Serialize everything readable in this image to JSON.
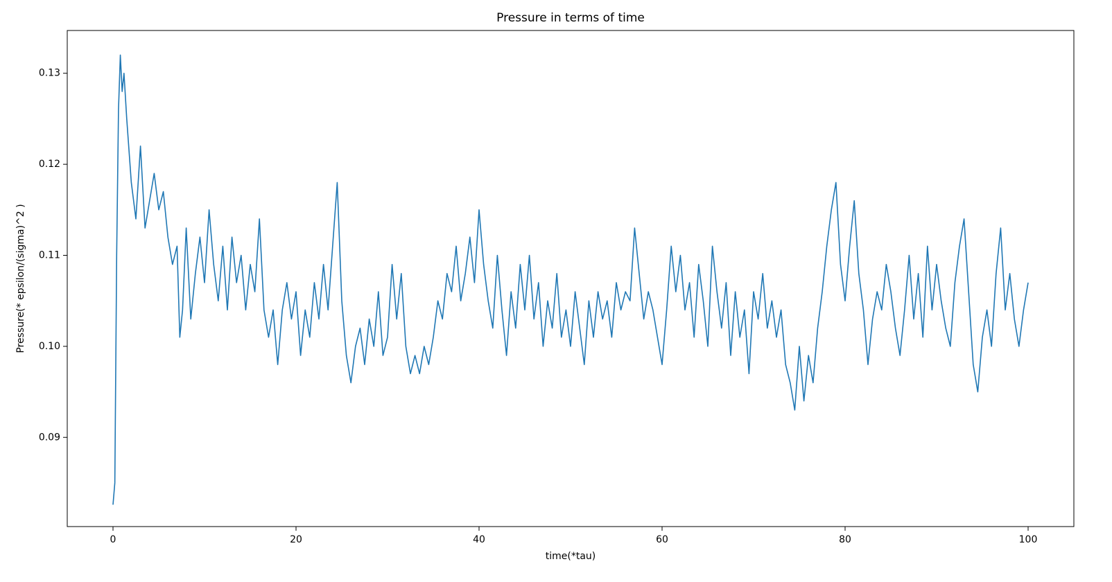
{
  "chart_data": {
    "type": "line",
    "title": "Pressure in terms of time",
    "xlabel": "time(*tau)",
    "ylabel": "Pressure(* epsilon/(sigma)^2 )",
    "xlim": [
      -5,
      105
    ],
    "ylim": [
      0.0802,
      0.1347
    ],
    "xticks": [
      0,
      20,
      40,
      60,
      80,
      100
    ],
    "yticks": [
      0.09,
      {
        "value": 0.1,
        "label": "0.10"
      },
      0.11,
      0.12,
      0.13
    ],
    "grid": false,
    "series": [
      {
        "color": "#1f77b4",
        "x": [
          0,
          0.2,
          0.4,
          0.6,
          0.8,
          1.0,
          1.2,
          1.5,
          2,
          2.5,
          3,
          3.5,
          4,
          4.5,
          5,
          5.5,
          6,
          6.5,
          7,
          7.3,
          7.6,
          8,
          8.5,
          9,
          9.5,
          10,
          10.5,
          11,
          11.5,
          12,
          12.5,
          13,
          13.5,
          14,
          14.5,
          15,
          15.5,
          16,
          16.5,
          17,
          17.5,
          18,
          18.5,
          19,
          19.5,
          20,
          20.5,
          21,
          21.5,
          22,
          22.5,
          23,
          23.5,
          24,
          24.5,
          25,
          25.5,
          26,
          26.5,
          27,
          27.5,
          28,
          28.5,
          29,
          29.5,
          30,
          30.5,
          31,
          31.5,
          32,
          32.5,
          33,
          33.5,
          34,
          34.5,
          35,
          35.5,
          36,
          36.5,
          37,
          37.5,
          38,
          38.5,
          39,
          39.5,
          40,
          40.5,
          41,
          41.5,
          42,
          42.5,
          43,
          43.5,
          44,
          44.5,
          45,
          45.5,
          46,
          46.5,
          47,
          47.5,
          48,
          48.5,
          49,
          49.5,
          50,
          50.5,
          51,
          51.5,
          52,
          52.5,
          53,
          53.5,
          54,
          54.5,
          55,
          55.5,
          56,
          56.5,
          57,
          57.5,
          58,
          58.5,
          59,
          59.5,
          60,
          60.5,
          61,
          61.5,
          62,
          62.5,
          63,
          63.5,
          64,
          64.5,
          65,
          65.5,
          66,
          66.5,
          67,
          67.5,
          68,
          68.5,
          69,
          69.5,
          70,
          70.5,
          71,
          71.5,
          72,
          72.5,
          73,
          73.5,
          74,
          74.5,
          75,
          75.5,
          76,
          76.5,
          77,
          77.5,
          78,
          78.5,
          79,
          79.5,
          80,
          80.5,
          81,
          81.5,
          82,
          82.5,
          83,
          83.5,
          84,
          84.5,
          85,
          85.5,
          86,
          86.5,
          87,
          87.5,
          88,
          88.5,
          89,
          89.5,
          90,
          90.5,
          91,
          91.5,
          92,
          92.5,
          93,
          93.5,
          94,
          94.5,
          95,
          95.5,
          96,
          96.5,
          97,
          97.5,
          98,
          98.5,
          99,
          99.5,
          100
        ],
        "values": [
          0.0826,
          0.085,
          0.11,
          0.126,
          0.132,
          0.128,
          0.13,
          0.125,
          0.118,
          0.114,
          0.122,
          0.113,
          0.116,
          0.119,
          0.115,
          0.117,
          0.112,
          0.109,
          0.111,
          0.101,
          0.104,
          0.113,
          0.103,
          0.108,
          0.112,
          0.107,
          0.115,
          0.109,
          0.105,
          0.111,
          0.104,
          0.112,
          0.107,
          0.11,
          0.104,
          0.109,
          0.106,
          0.114,
          0.104,
          0.101,
          0.104,
          0.098,
          0.104,
          0.107,
          0.103,
          0.106,
          0.099,
          0.104,
          0.101,
          0.107,
          0.103,
          0.109,
          0.104,
          0.111,
          0.118,
          0.105,
          0.099,
          0.096,
          0.1,
          0.102,
          0.098,
          0.103,
          0.1,
          0.106,
          0.099,
          0.101,
          0.109,
          0.103,
          0.108,
          0.1,
          0.097,
          0.099,
          0.097,
          0.1,
          0.098,
          0.101,
          0.105,
          0.103,
          0.108,
          0.106,
          0.111,
          0.105,
          0.108,
          0.112,
          0.107,
          0.115,
          0.109,
          0.105,
          0.102,
          0.11,
          0.104,
          0.099,
          0.106,
          0.102,
          0.109,
          0.104,
          0.11,
          0.103,
          0.107,
          0.1,
          0.105,
          0.102,
          0.108,
          0.101,
          0.104,
          0.1,
          0.106,
          0.102,
          0.098,
          0.105,
          0.101,
          0.106,
          0.103,
          0.105,
          0.101,
          0.107,
          0.104,
          0.106,
          0.105,
          0.113,
          0.108,
          0.103,
          0.106,
          0.104,
          0.101,
          0.098,
          0.104,
          0.111,
          0.106,
          0.11,
          0.104,
          0.107,
          0.101,
          0.109,
          0.105,
          0.1,
          0.111,
          0.106,
          0.102,
          0.107,
          0.099,
          0.106,
          0.101,
          0.104,
          0.097,
          0.106,
          0.103,
          0.108,
          0.102,
          0.105,
          0.101,
          0.104,
          0.098,
          0.096,
          0.093,
          0.1,
          0.094,
          0.099,
          0.096,
          0.102,
          0.106,
          0.111,
          0.115,
          0.118,
          0.109,
          0.105,
          0.111,
          0.116,
          0.108,
          0.104,
          0.098,
          0.103,
          0.106,
          0.104,
          0.109,
          0.106,
          0.102,
          0.099,
          0.104,
          0.11,
          0.103,
          0.108,
          0.101,
          0.111,
          0.104,
          0.109,
          0.105,
          0.102,
          0.1,
          0.107,
          0.111,
          0.114,
          0.106,
          0.098,
          0.095,
          0.101,
          0.104,
          0.1,
          0.108,
          0.113,
          0.104,
          0.108,
          0.103,
          0.1,
          0.104,
          0.107
        ]
      }
    ]
  }
}
